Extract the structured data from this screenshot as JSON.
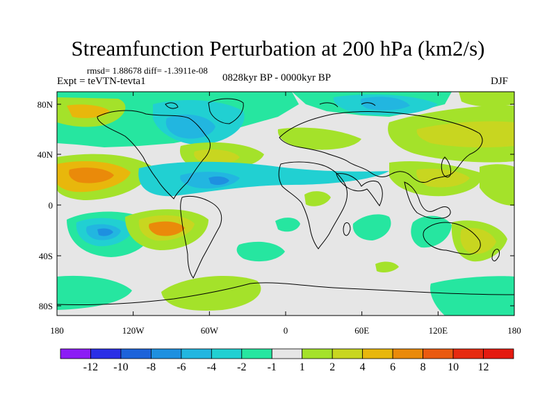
{
  "title": "Streamfunction Perturbation at 200 hPa (km2/s)",
  "stats": {
    "rmsd_text": "rmsd= 1.88678 diff= -1.3911e-08"
  },
  "left_string": "Expt = teVTN-tevta1",
  "center_string": "0828kyr BP - 0000kyr BP",
  "right_string": "DJF",
  "axes": {
    "x_ticks": [
      "180",
      "120W",
      "60W",
      "0",
      "60E",
      "120E",
      "180"
    ],
    "y_ticks": [
      "80N",
      "40N",
      "0",
      "40S",
      "80S"
    ]
  },
  "colorbar": {
    "labels": [
      "-12",
      "-10",
      "-8",
      "-6",
      "-4",
      "-2",
      "-1",
      "1",
      "2",
      "4",
      "6",
      "8",
      "10",
      "12"
    ],
    "colors": [
      "#8c1cf5",
      "#2a2ee6",
      "#1d63da",
      "#1e90e0",
      "#22b6e0",
      "#21d0d2",
      "#26e6a0",
      "#e6e6e6",
      "#a4e22a",
      "#c8d620",
      "#e8b70c",
      "#ea8a0a",
      "#ea5a10",
      "#e62a10",
      "#e41a10"
    ]
  },
  "colors": {
    "neutral": "#e6e6e6",
    "green": "#a4e22a",
    "yellow": "#c8d620",
    "orange": "#e8b70c",
    "dark_orange": "#ea8a0a",
    "teal": "#26e6a0",
    "cyan": "#21d0d2",
    "sky": "#22b6e0",
    "blue": "#1e90e0"
  }
}
